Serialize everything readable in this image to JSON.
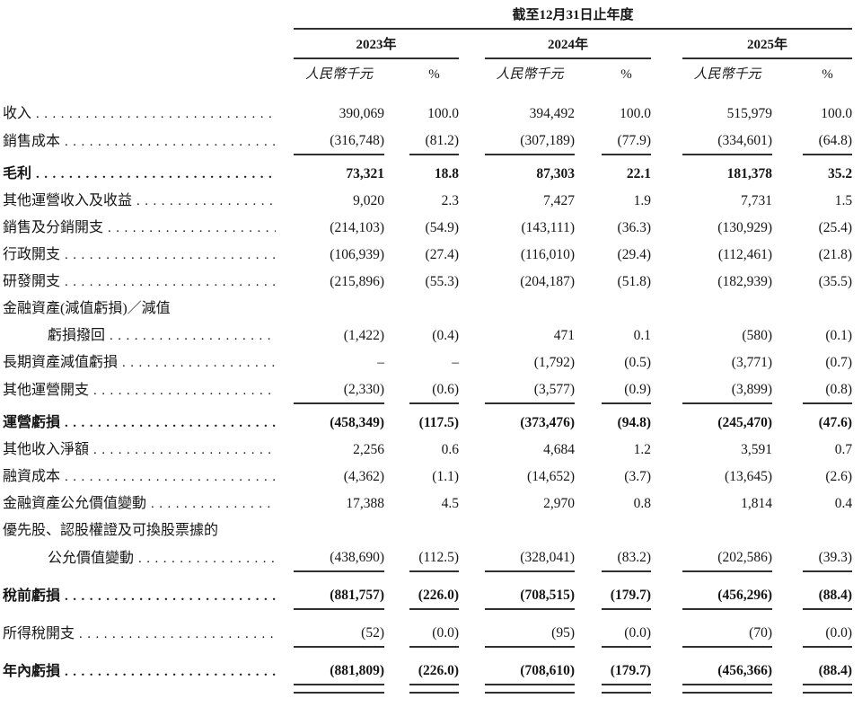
{
  "table": {
    "span_header": "截至12月31日止年度",
    "year_headers": [
      "2023年",
      "2024年",
      "2025年"
    ],
    "unit_label": "人民幣千元",
    "pct_label": "%",
    "rows": [
      {
        "type": "data",
        "label": "收入",
        "bold": false,
        "indent": false,
        "values": [
          "390,069",
          "100.0",
          "394,492",
          "100.0",
          "515,979",
          "100.0"
        ],
        "rule_below": "none"
      },
      {
        "type": "data",
        "label": "銷售成本",
        "bold": false,
        "indent": false,
        "values": [
          "(316,748)",
          "(81.2)",
          "(307,189)",
          "(77.9)",
          "(334,601)",
          "(64.8)"
        ],
        "rule_below": "single"
      },
      {
        "type": "data",
        "label": "毛利",
        "bold": true,
        "indent": false,
        "values": [
          "73,321",
          "18.8",
          "87,303",
          "22.1",
          "181,378",
          "35.2"
        ],
        "rule_below": "none"
      },
      {
        "type": "data",
        "label": "其他運營收入及收益",
        "bold": false,
        "indent": false,
        "values": [
          "9,020",
          "2.3",
          "7,427",
          "1.9",
          "7,731",
          "1.5"
        ],
        "rule_below": "none"
      },
      {
        "type": "data",
        "label": "銷售及分銷開支",
        "bold": false,
        "indent": false,
        "values": [
          "(214,103)",
          "(54.9)",
          "(143,111)",
          "(36.3)",
          "(130,929)",
          "(25.4)"
        ],
        "rule_below": "none"
      },
      {
        "type": "data",
        "label": "行政開支",
        "bold": false,
        "indent": false,
        "values": [
          "(106,939)",
          "(27.4)",
          "(116,010)",
          "(29.4)",
          "(112,461)",
          "(21.8)"
        ],
        "rule_below": "none"
      },
      {
        "type": "data",
        "label": "研發開支",
        "bold": false,
        "indent": false,
        "values": [
          "(215,896)",
          "(55.3)",
          "(204,187)",
          "(51.8)",
          "(182,939)",
          "(35.5)"
        ],
        "rule_below": "none"
      },
      {
        "type": "caption",
        "label": "金融資產(減值虧損)／減值",
        "rule_below": "none"
      },
      {
        "type": "data",
        "label": "虧損撥回",
        "bold": false,
        "indent": true,
        "values": [
          "(1,422)",
          "(0.4)",
          "471",
          "0.1",
          "(580)",
          "(0.1)"
        ],
        "rule_below": "none"
      },
      {
        "type": "data",
        "label": "長期資產減值虧損",
        "bold": false,
        "indent": false,
        "values": [
          "–",
          "–",
          "(1,792)",
          "(0.5)",
          "(3,771)",
          "(0.7)"
        ],
        "rule_below": "none"
      },
      {
        "type": "data",
        "label": "其他運營開支",
        "bold": false,
        "indent": false,
        "values": [
          "(2,330)",
          "(0.6)",
          "(3,577)",
          "(0.9)",
          "(3,899)",
          "(0.8)"
        ],
        "rule_below": "single"
      },
      {
        "type": "data",
        "label": "運營虧損",
        "bold": true,
        "indent": false,
        "values": [
          "(458,349)",
          "(117.5)",
          "(373,476)",
          "(94.8)",
          "(245,470)",
          "(47.6)"
        ],
        "rule_below": "none"
      },
      {
        "type": "data",
        "label": "其他收入淨額",
        "bold": false,
        "indent": false,
        "values": [
          "2,256",
          "0.6",
          "4,684",
          "1.2",
          "3,591",
          "0.7"
        ],
        "rule_below": "none"
      },
      {
        "type": "data",
        "label": "融資成本",
        "bold": false,
        "indent": false,
        "values": [
          "(4,362)",
          "(1.1)",
          "(14,652)",
          "(3.7)",
          "(13,645)",
          "(2.6)"
        ],
        "rule_below": "none"
      },
      {
        "type": "data",
        "label": "金融資產公允價值變動",
        "bold": false,
        "indent": false,
        "values": [
          "17,388",
          "4.5",
          "2,970",
          "0.8",
          "1,814",
          "0.4"
        ],
        "rule_below": "none"
      },
      {
        "type": "caption",
        "label": "優先股、認股權證及可換股票據的",
        "rule_below": "none"
      },
      {
        "type": "data",
        "label": "公允價值變動",
        "bold": false,
        "indent": true,
        "values": [
          "(438,690)",
          "(112.5)",
          "(328,041)",
          "(83.2)",
          "(202,586)",
          "(39.3)"
        ],
        "rule_below": "single"
      },
      {
        "type": "data",
        "label": "稅前虧損",
        "bold": true,
        "indent": false,
        "values": [
          "(881,757)",
          "(226.0)",
          "(708,515)",
          "(179.7)",
          "(456,296)",
          "(88.4)"
        ],
        "rule_below": "single"
      },
      {
        "type": "data",
        "label": "所得稅開支",
        "bold": false,
        "indent": false,
        "values": [
          "(52)",
          "(0.0)",
          "(95)",
          "(0.0)",
          "(70)",
          "(0.0)"
        ],
        "rule_below": "single"
      },
      {
        "type": "data",
        "label": "年內虧損",
        "bold": true,
        "indent": false,
        "values": [
          "(881,809)",
          "(226.0)",
          "(708,610)",
          "(179.7)",
          "(456,366)",
          "(88.4)"
        ],
        "rule_below": "double"
      }
    ]
  }
}
